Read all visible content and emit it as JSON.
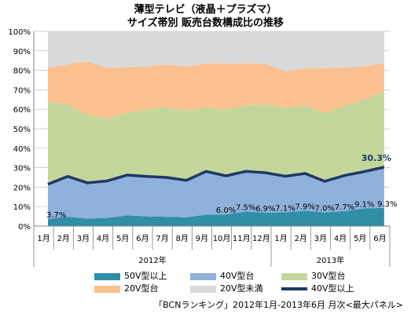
{
  "title_line1": "薄型テレビ（液晶＋プラズマ）",
  "title_line2": "サイズ帯別 販売台数構成比の推移",
  "source": "「BCNランキング」2012年1月-2013年6月 月次<最大パネル>",
  "colors": {
    "s50_plus": "#2f8fa7",
    "s40s": "#8fb1dc",
    "s30s": "#c4d79b",
    "s20s": "#fac090",
    "s20_under": "#d9d9d9",
    "line": "#1f3864"
  },
  "chart_data": {
    "type": "area",
    "stacked": true,
    "unit": "%",
    "ylim": [
      0,
      100
    ],
    "yticks": [
      "0%",
      "10%",
      "20%",
      "30%",
      "40%",
      "50%",
      "60%",
      "70%",
      "80%",
      "90%",
      "100%"
    ],
    "categories": [
      "1月",
      "2月",
      "3月",
      "4月",
      "5月",
      "6月",
      "7月",
      "8月",
      "9月",
      "10月",
      "11月",
      "12月",
      "1月",
      "2月",
      "3月",
      "4月",
      "5月",
      "6月"
    ],
    "year_groups": [
      {
        "label": "2012年",
        "count": 12
      },
      {
        "label": "2013年",
        "count": 6
      }
    ],
    "series": [
      {
        "name": "50V型以上",
        "key": "s50_plus",
        "values": [
          3.7,
          4.8,
          3.9,
          4.2,
          5.5,
          5.0,
          4.8,
          4.5,
          5.9,
          6.0,
          7.5,
          6.9,
          7.1,
          7.9,
          7.0,
          7.7,
          9.1,
          9.3
        ]
      },
      {
        "name": "40V型台",
        "key": "s40s",
        "values": [
          17.8,
          20.7,
          18.3,
          19.0,
          20.7,
          20.5,
          20.2,
          19.0,
          22.2,
          19.8,
          20.6,
          20.5,
          18.5,
          19.1,
          16.0,
          18.3,
          18.9,
          21.0
        ]
      },
      {
        "name": "30V型台",
        "key": "s30s",
        "values": [
          42.2,
          37.0,
          34.8,
          32.0,
          32.0,
          34.5,
          36.0,
          36.0,
          33.0,
          34.0,
          34.0,
          35.0,
          35.0,
          35.0,
          35.0,
          36.0,
          37.0,
          38.5
        ]
      },
      {
        "name": "20V型台",
        "key": "s20s",
        "values": [
          17.5,
          20.5,
          27.5,
          26.0,
          23.5,
          22.0,
          22.0,
          22.5,
          22.5,
          23.5,
          21.5,
          21.0,
          19.0,
          19.0,
          23.0,
          19.5,
          17.0,
          15.0
        ]
      },
      {
        "name": "20V型未満",
        "key": "s20_under",
        "values": [
          18.8,
          17.0,
          15.5,
          18.8,
          18.3,
          18.0,
          17.0,
          18.0,
          16.4,
          16.7,
          16.4,
          16.6,
          20.4,
          19.0,
          19.0,
          18.5,
          18.0,
          16.2
        ]
      }
    ],
    "line_series": {
      "name": "40V型以上",
      "key": "line",
      "values": [
        21.5,
        25.5,
        22.2,
        23.2,
        26.2,
        25.5,
        25.0,
        23.5,
        28.1,
        25.8,
        28.1,
        27.4,
        25.6,
        27.0,
        23.0,
        26.0,
        28.0,
        30.3
      ]
    },
    "data_labels": [
      {
        "index": 0,
        "text": "3.7%"
      },
      {
        "index": 9,
        "text": "6.0%"
      },
      {
        "index": 10,
        "text": "7.5%"
      },
      {
        "index": 11,
        "text": "6.9%"
      },
      {
        "index": 12,
        "text": "7.1%"
      },
      {
        "index": 13,
        "text": "7.9%"
      },
      {
        "index": 14,
        "text": "7.0%"
      },
      {
        "index": 15,
        "text": "7.7%"
      },
      {
        "index": 16,
        "text": "9.1%"
      },
      {
        "index": 17,
        "text": "9.3%"
      }
    ],
    "line_end_label": "30.3%",
    "legend_position": "bottom"
  }
}
